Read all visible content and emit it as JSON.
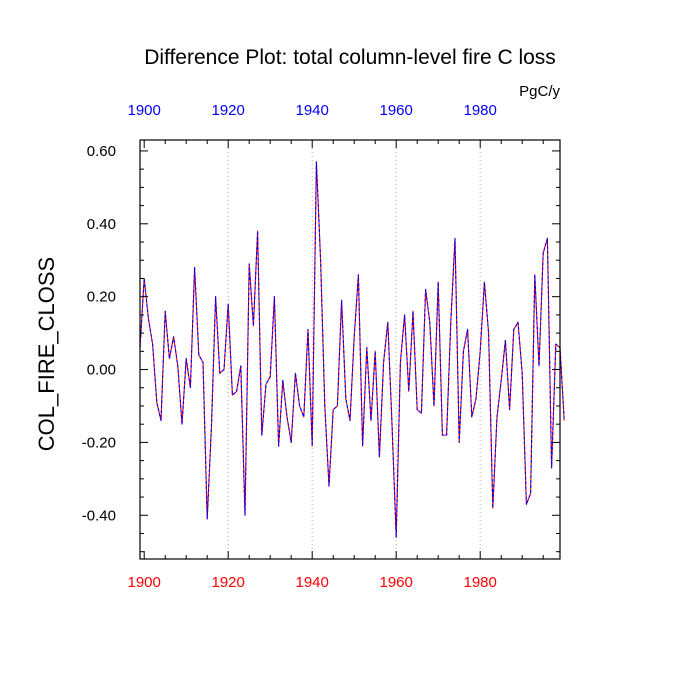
{
  "chart_data": {
    "type": "line",
    "title": "Difference Plot: total column-level fire C loss",
    "ylabel": "COL_FIRE_CLOSS",
    "units": "PgC/y",
    "xlim": [
      1899,
      1999
    ],
    "ylim": [
      -0.52,
      0.63
    ],
    "x_ticks": [
      1900,
      1920,
      1940,
      1960,
      1980
    ],
    "x_tick_labels": [
      "1900",
      "1920",
      "1940",
      "1960",
      "1980"
    ],
    "y_ticks": [
      -0.4,
      -0.2,
      0.0,
      0.2,
      0.4,
      0.6
    ],
    "y_tick_labels": [
      "-0.40",
      "-0.20",
      "0.00",
      "0.20",
      "0.40",
      "0.60"
    ],
    "grid": "vertical dotted at major x ticks",
    "colors": {
      "top_axis_labels": "#0000ff",
      "bottom_axis_labels": "#ff0000",
      "series_a": "#ff0000",
      "series_b": "#0000ff"
    },
    "series": [
      {
        "color": "#ff0000",
        "dash": "solid",
        "values": [
          0.06,
          0.25,
          0.14,
          0.07,
          -0.09,
          -0.14,
          0.16,
          0.03,
          0.09,
          0.01,
          -0.15,
          0.03,
          -0.05,
          0.28,
          0.04,
          0.02,
          -0.41,
          -0.16,
          0.2,
          -0.01,
          0.0,
          0.18,
          -0.07,
          -0.06,
          0.01,
          -0.4,
          0.29,
          0.12,
          0.38,
          -0.18,
          -0.04,
          -0.02,
          0.2,
          -0.21,
          -0.03,
          -0.13,
          -0.2,
          -0.01,
          -0.1,
          -0.13,
          0.11,
          -0.21,
          0.57,
          0.3,
          -0.1,
          -0.32,
          -0.11,
          -0.1,
          0.19,
          -0.08,
          -0.14,
          0.09,
          0.26,
          -0.21,
          0.06,
          -0.14,
          0.05,
          -0.24,
          0.02,
          0.13,
          -0.15,
          -0.46,
          0.02,
          0.15,
          -0.06,
          0.16,
          -0.11,
          -0.12,
          0.22,
          0.13,
          -0.1,
          0.24,
          -0.18,
          -0.18,
          0.13,
          0.36,
          -0.2,
          0.05,
          0.11,
          -0.13,
          -0.08,
          0.05,
          0.24,
          0.1,
          -0.38,
          -0.13,
          -0.03,
          0.08,
          -0.11,
          0.11,
          0.13,
          -0.01,
          -0.37,
          -0.34,
          0.26,
          0.01,
          0.32,
          0.36,
          -0.27,
          0.07,
          0.06,
          -0.14
        ]
      },
      {
        "color": "#0000ff",
        "dash": "dashed",
        "values": [
          0.06,
          0.25,
          0.14,
          0.07,
          -0.09,
          -0.14,
          0.16,
          0.03,
          0.09,
          0.01,
          -0.15,
          0.03,
          -0.05,
          0.28,
          0.04,
          0.02,
          -0.41,
          -0.16,
          0.2,
          -0.01,
          0.0,
          0.18,
          -0.07,
          -0.06,
          0.01,
          -0.4,
          0.29,
          0.12,
          0.38,
          -0.18,
          -0.04,
          -0.02,
          0.2,
          -0.21,
          -0.03,
          -0.13,
          -0.2,
          -0.01,
          -0.1,
          -0.13,
          0.11,
          -0.21,
          0.57,
          0.3,
          -0.1,
          -0.32,
          -0.11,
          -0.1,
          0.19,
          -0.08,
          -0.14,
          0.09,
          0.26,
          -0.21,
          0.06,
          -0.14,
          0.05,
          -0.24,
          0.02,
          0.13,
          -0.15,
          -0.46,
          0.02,
          0.15,
          -0.06,
          0.16,
          -0.11,
          -0.12,
          0.22,
          0.13,
          -0.1,
          0.24,
          -0.18,
          -0.18,
          0.13,
          0.36,
          -0.2,
          0.05,
          0.11,
          -0.13,
          -0.08,
          0.05,
          0.24,
          0.1,
          -0.38,
          -0.13,
          -0.03,
          0.08,
          -0.11,
          0.11,
          0.13,
          -0.01,
          -0.37,
          -0.34,
          0.26,
          0.01,
          0.32,
          0.36,
          -0.27,
          0.07,
          0.06,
          -0.14
        ]
      }
    ]
  }
}
